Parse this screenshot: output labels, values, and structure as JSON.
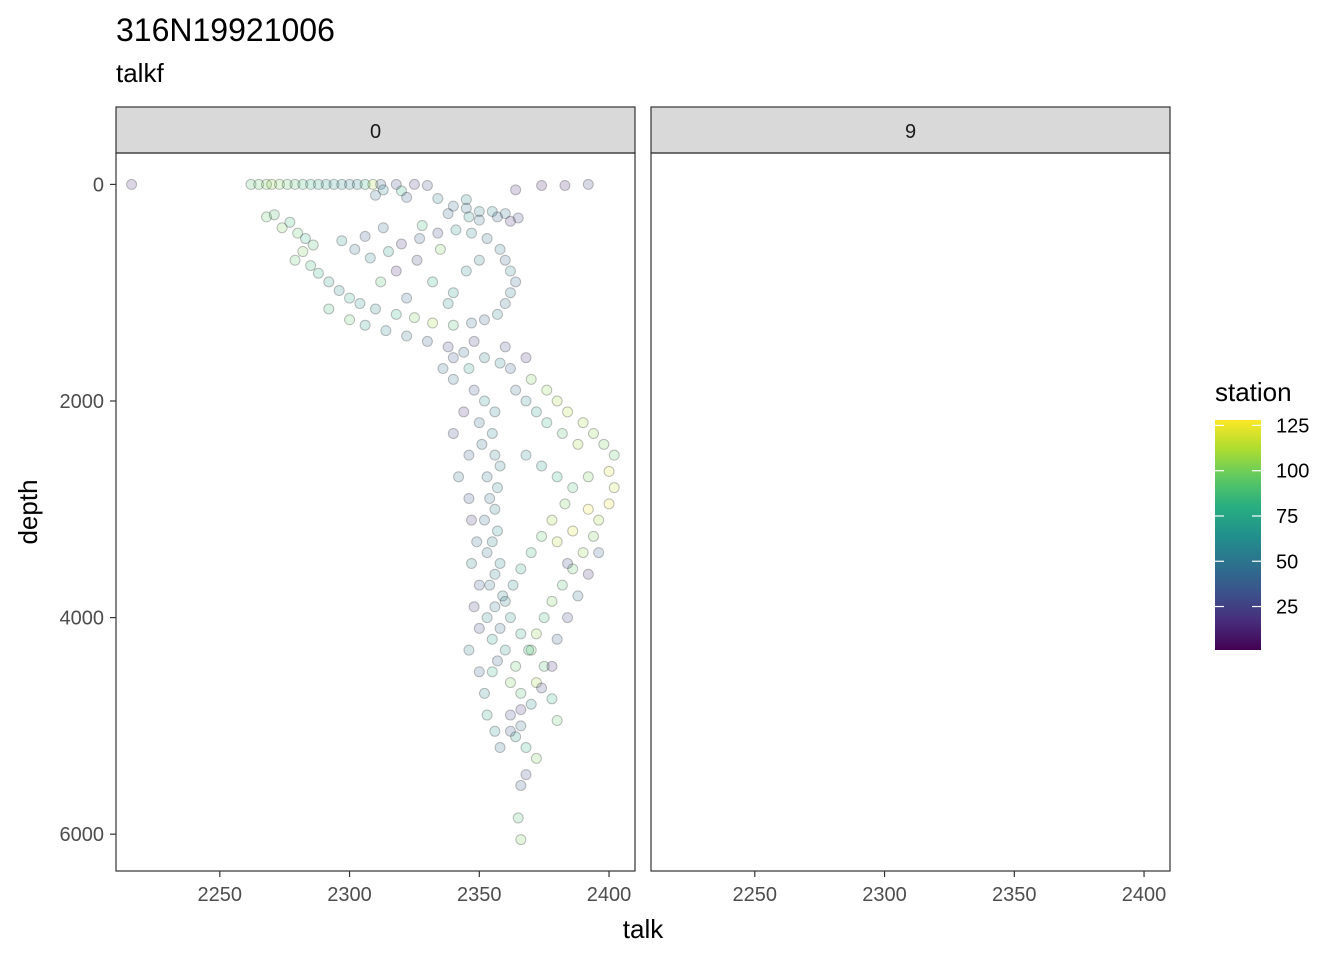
{
  "chart_data": {
    "type": "scatter",
    "title": "316N19921006",
    "subtitle": "talkf",
    "xlabel": "talk",
    "ylabel": "depth",
    "xlim": [
      2210,
      2410
    ],
    "ylim": [
      -290,
      6340
    ],
    "x_ticks": [
      2250,
      2300,
      2350,
      2400
    ],
    "y_ticks": [
      0,
      2000,
      4000,
      6000
    ],
    "y_reversed": true,
    "panels": [
      {
        "label": "0"
      },
      {
        "label": "9"
      }
    ],
    "legend": {
      "title": "station",
      "placement": "right",
      "min": 1,
      "max": 128,
      "ticks": [
        25,
        50,
        75,
        100,
        125
      ],
      "colors": [
        "#440154",
        "#472d7b",
        "#3b528b",
        "#2c728e",
        "#21918c",
        "#28ae80",
        "#5ec962",
        "#addc30",
        "#fde725"
      ]
    },
    "point_style": {
      "fill_alpha": 0.2,
      "stroke": "#000000"
    },
    "series": [
      {
        "panel": "0",
        "points": [
          [
            2216,
            0,
            20
          ],
          [
            2262,
            0,
            90
          ],
          [
            2265,
            0,
            95
          ],
          [
            2268,
            0,
            100
          ],
          [
            2270,
            0,
            105
          ],
          [
            2273,
            0,
            100
          ],
          [
            2276,
            0,
            95
          ],
          [
            2279,
            0,
            90
          ],
          [
            2282,
            0,
            85
          ],
          [
            2285,
            0,
            80
          ],
          [
            2288,
            0,
            75
          ],
          [
            2291,
            0,
            70
          ],
          [
            2294,
            0,
            65
          ],
          [
            2297,
            0,
            60
          ],
          [
            2300,
            0,
            55
          ],
          [
            2303,
            0,
            60
          ],
          [
            2306,
            0,
            80
          ],
          [
            2309,
            0,
            110
          ],
          [
            2312,
            0,
            40
          ],
          [
            2318,
            0,
            30
          ],
          [
            2325,
            0,
            20
          ],
          [
            2330,
            10,
            30
          ],
          [
            2364,
            50,
            15
          ],
          [
            2374,
            10,
            10
          ],
          [
            2383,
            10,
            10
          ],
          [
            2392,
            0,
            25
          ],
          [
            2313,
            50,
            60
          ],
          [
            2320,
            60,
            80
          ],
          [
            2310,
            100,
            50
          ],
          [
            2322,
            120,
            40
          ],
          [
            2334,
            130,
            55
          ],
          [
            2345,
            140,
            60
          ],
          [
            2340,
            200,
            45
          ],
          [
            2345,
            220,
            50
          ],
          [
            2350,
            250,
            55
          ],
          [
            2355,
            250,
            60
          ],
          [
            2360,
            270,
            50
          ],
          [
            2357,
            300,
            40
          ],
          [
            2365,
            310,
            30
          ],
          [
            2338,
            270,
            45
          ],
          [
            2346,
            300,
            65
          ],
          [
            2350,
            330,
            50
          ],
          [
            2362,
            340,
            20
          ],
          [
            2268,
            300,
            95
          ],
          [
            2271,
            280,
            90
          ],
          [
            2274,
            400,
            100
          ],
          [
            2277,
            350,
            85
          ],
          [
            2280,
            450,
            95
          ],
          [
            2283,
            500,
            80
          ],
          [
            2286,
            560,
            90
          ],
          [
            2282,
            620,
            100
          ],
          [
            2279,
            700,
            95
          ],
          [
            2285,
            750,
            85
          ],
          [
            2288,
            820,
            80
          ],
          [
            2292,
            900,
            70
          ],
          [
            2296,
            980,
            60
          ],
          [
            2300,
            1050,
            75
          ],
          [
            2304,
            1100,
            65
          ],
          [
            2310,
            1150,
            55
          ],
          [
            2318,
            1200,
            80
          ],
          [
            2325,
            1230,
            100
          ],
          [
            2332,
            1280,
            110
          ],
          [
            2340,
            1300,
            90
          ],
          [
            2347,
            1280,
            50
          ],
          [
            2352,
            1250,
            40
          ],
          [
            2357,
            1200,
            60
          ],
          [
            2360,
            1100,
            50
          ],
          [
            2362,
            1000,
            55
          ],
          [
            2364,
            900,
            45
          ],
          [
            2362,
            800,
            60
          ],
          [
            2360,
            700,
            40
          ],
          [
            2358,
            600,
            55
          ],
          [
            2353,
            500,
            50
          ],
          [
            2347,
            450,
            60
          ],
          [
            2341,
            420,
            65
          ],
          [
            2334,
            450,
            30
          ],
          [
            2327,
            500,
            40
          ],
          [
            2320,
            550,
            20
          ],
          [
            2315,
            620,
            70
          ],
          [
            2308,
            680,
            60
          ],
          [
            2302,
            600,
            50
          ],
          [
            2297,
            520,
            65
          ],
          [
            2306,
            480,
            35
          ],
          [
            2313,
            400,
            45
          ],
          [
            2328,
            380,
            85
          ],
          [
            2335,
            600,
            100
          ],
          [
            2326,
            700,
            25
          ],
          [
            2318,
            800,
            15
          ],
          [
            2312,
            900,
            90
          ],
          [
            2332,
            900,
            80
          ],
          [
            2340,
            1000,
            70
          ],
          [
            2345,
            800,
            60
          ],
          [
            2350,
            700,
            55
          ],
          [
            2338,
            1100,
            65
          ],
          [
            2322,
            1050,
            45
          ],
          [
            2292,
            1150,
            85
          ],
          [
            2300,
            1250,
            95
          ],
          [
            2306,
            1300,
            70
          ],
          [
            2314,
            1350,
            60
          ],
          [
            2322,
            1400,
            50
          ],
          [
            2330,
            1450,
            40
          ],
          [
            2338,
            1500,
            30
          ],
          [
            2344,
            1550,
            45
          ],
          [
            2352,
            1600,
            55
          ],
          [
            2358,
            1650,
            60
          ],
          [
            2346,
            1700,
            70
          ],
          [
            2340,
            1800,
            50
          ],
          [
            2348,
            1900,
            35
          ],
          [
            2352,
            2000,
            65
          ],
          [
            2356,
            2100,
            55
          ],
          [
            2350,
            2200,
            45
          ],
          [
            2355,
            2300,
            60
          ],
          [
            2351,
            2400,
            50
          ],
          [
            2356,
            2500,
            55
          ],
          [
            2358,
            2600,
            58
          ],
          [
            2353,
            2700,
            52
          ],
          [
            2357,
            2800,
            60
          ],
          [
            2354,
            2900,
            50
          ],
          [
            2356,
            3000,
            55
          ],
          [
            2352,
            3100,
            45
          ],
          [
            2357,
            3200,
            62
          ],
          [
            2355,
            3300,
            55
          ],
          [
            2353,
            3400,
            48
          ],
          [
            2358,
            3500,
            60
          ],
          [
            2356,
            3600,
            55
          ],
          [
            2354,
            3700,
            50
          ],
          [
            2359,
            3800,
            57
          ],
          [
            2356,
            3900,
            52
          ],
          [
            2353,
            4000,
            60
          ],
          [
            2358,
            4100,
            45
          ],
          [
            2355,
            4200,
            70
          ],
          [
            2360,
            4300,
            65
          ],
          [
            2357,
            4400,
            40
          ],
          [
            2355,
            4500,
            80
          ],
          [
            2362,
            4600,
            100
          ],
          [
            2366,
            4700,
            90
          ],
          [
            2370,
            4800,
            60
          ],
          [
            2362,
            4900,
            30
          ],
          [
            2366,
            5000,
            50
          ],
          [
            2364,
            5100,
            70
          ],
          [
            2368,
            5200,
            80
          ],
          [
            2372,
            5300,
            100
          ],
          [
            2368,
            5450,
            30
          ],
          [
            2366,
            5550,
            40
          ],
          [
            2365,
            5850,
            90
          ],
          [
            2366,
            6050,
            100
          ],
          [
            2370,
            1800,
            100
          ],
          [
            2376,
            1900,
            105
          ],
          [
            2380,
            2000,
            110
          ],
          [
            2384,
            2100,
            115
          ],
          [
            2390,
            2200,
            110
          ],
          [
            2394,
            2300,
            105
          ],
          [
            2398,
            2400,
            100
          ],
          [
            2402,
            2500,
            95
          ],
          [
            2400,
            2650,
            120
          ],
          [
            2402,
            2800,
            115
          ],
          [
            2400,
            2950,
            125
          ],
          [
            2396,
            3100,
            110
          ],
          [
            2394,
            3250,
            100
          ],
          [
            2390,
            3400,
            105
          ],
          [
            2386,
            3550,
            95
          ],
          [
            2382,
            3700,
            90
          ],
          [
            2378,
            3850,
            100
          ],
          [
            2375,
            4000,
            85
          ],
          [
            2372,
            4150,
            105
          ],
          [
            2370,
            4300,
            95
          ],
          [
            2375,
            4450,
            90
          ],
          [
            2372,
            4600,
            110
          ],
          [
            2378,
            4750,
            80
          ],
          [
            2380,
            4950,
            95
          ],
          [
            2368,
            2500,
            60
          ],
          [
            2374,
            2600,
            70
          ],
          [
            2380,
            2700,
            80
          ],
          [
            2386,
            2800,
            90
          ],
          [
            2383,
            2950,
            100
          ],
          [
            2378,
            3100,
            110
          ],
          [
            2374,
            3250,
            95
          ],
          [
            2370,
            3400,
            85
          ],
          [
            2366,
            3550,
            75
          ],
          [
            2363,
            3700,
            60
          ],
          [
            2360,
            3850,
            55
          ],
          [
            2362,
            4000,
            65
          ],
          [
            2366,
            4150,
            75
          ],
          [
            2369,
            4300,
            85
          ],
          [
            2364,
            4450,
            95
          ],
          [
            2380,
            3300,
            115
          ],
          [
            2386,
            3200,
            120
          ],
          [
            2392,
            3000,
            125
          ],
          [
            2392,
            2700,
            100
          ],
          [
            2388,
            2400,
            110
          ],
          [
            2382,
            2300,
            90
          ],
          [
            2376,
            2200,
            80
          ],
          [
            2372,
            2100,
            70
          ],
          [
            2368,
            2000,
            60
          ],
          [
            2364,
            1900,
            50
          ],
          [
            2362,
            1700,
            40
          ],
          [
            2360,
            1500,
            30
          ],
          [
            2348,
            1450,
            25
          ],
          [
            2340,
            1600,
            35
          ],
          [
            2336,
            1700,
            45
          ],
          [
            2344,
            2100,
            20
          ],
          [
            2340,
            2300,
            30
          ],
          [
            2346,
            2500,
            40
          ],
          [
            2342,
            2700,
            50
          ],
          [
            2346,
            2900,
            35
          ],
          [
            2347,
            3100,
            20
          ],
          [
            2349,
            3300,
            45
          ],
          [
            2347,
            3500,
            55
          ],
          [
            2350,
            3700,
            35
          ],
          [
            2348,
            3900,
            25
          ],
          [
            2350,
            4100,
            30
          ],
          [
            2346,
            4300,
            55
          ],
          [
            2350,
            4500,
            40
          ],
          [
            2352,
            4700,
            60
          ],
          [
            2353,
            4900,
            75
          ],
          [
            2356,
            5050,
            65
          ],
          [
            2368,
            1600,
            20
          ],
          [
            2384,
            3500,
            30
          ],
          [
            2392,
            3600,
            20
          ],
          [
            2396,
            3400,
            40
          ],
          [
            2388,
            3800,
            50
          ],
          [
            2384,
            4000,
            30
          ],
          [
            2380,
            4200,
            40
          ],
          [
            2378,
            4450,
            20
          ],
          [
            2374,
            4650,
            30
          ],
          [
            2366,
            4850,
            20
          ],
          [
            2362,
            5050,
            35
          ],
          [
            2358,
            5200,
            45
          ]
        ]
      }
    ]
  }
}
